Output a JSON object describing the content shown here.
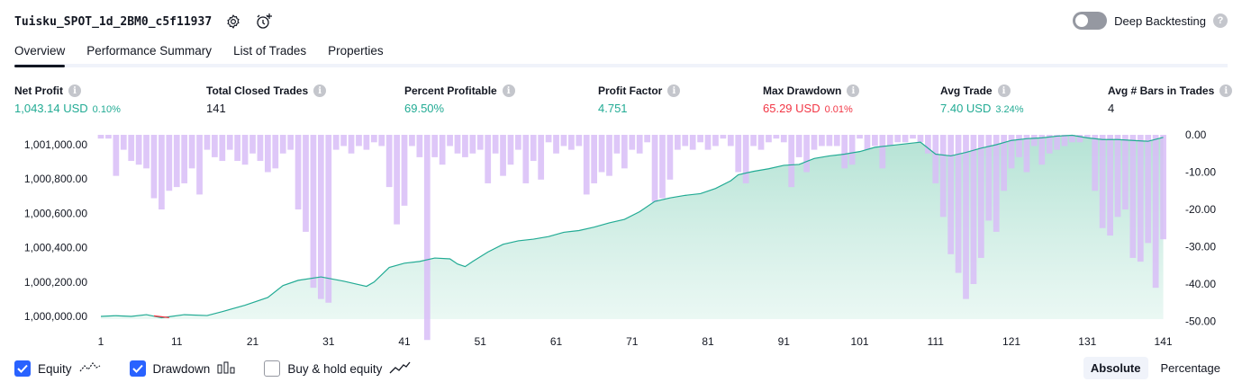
{
  "header": {
    "title": "Tuisku_SPOT_1d_2BM0_c5f11937",
    "deep_backtesting_label": "Deep Backtesting"
  },
  "tabs": [
    "Overview",
    "Performance Summary",
    "List of Trades",
    "Properties"
  ],
  "stats": {
    "net_profit": {
      "label": "Net Profit",
      "value": "1,043.14 USD",
      "pct": "0.10%"
    },
    "total_closed_trades": {
      "label": "Total Closed Trades",
      "value": "141"
    },
    "percent_profitable": {
      "label": "Percent Profitable",
      "value": "69.50%"
    },
    "profit_factor": {
      "label": "Profit Factor",
      "value": "4.751"
    },
    "max_drawdown": {
      "label": "Max Drawdown",
      "value": "65.29 USD",
      "pct": "0.01%"
    },
    "avg_trade": {
      "label": "Avg Trade",
      "value": "7.40 USD",
      "pct": "3.24%"
    },
    "avg_bars": {
      "label": "Avg # Bars in Trades",
      "value": "4"
    }
  },
  "legend": {
    "equity": "Equity",
    "drawdown": "Drawdown",
    "buy_hold": "Buy & hold equity"
  },
  "mode": {
    "absolute": "Absolute",
    "percentage": "Percentage"
  },
  "colors": {
    "accent": "#2962ff",
    "positive": "#22ab94",
    "negative": "#f23645",
    "drawdown_bar": "#d8bdf7",
    "equity_fill": "#c8ebe0"
  },
  "chart_data": {
    "type": "area",
    "x_ticks": [
      "1",
      "11",
      "21",
      "31",
      "41",
      "51",
      "61",
      "71",
      "81",
      "91",
      "101",
      "111",
      "121",
      "131",
      "141"
    ],
    "y_left_ticks": [
      "1,000,000.00",
      "1,000,200.00",
      "1,000,400.00",
      "1,000,600.00",
      "1,000,800.00",
      "1,001,000.00"
    ],
    "y_right_ticks": [
      "0.00",
      "-10.00",
      "-20.00",
      "-30.00",
      "-40.00",
      "-50.00"
    ],
    "equity_ylim": [
      999990,
      1001040
    ],
    "drawdown_ylim": [
      -55,
      0
    ],
    "series": [
      {
        "name": "Equity",
        "x": [
          1,
          3,
          5,
          7,
          9,
          10,
          12,
          15,
          17,
          20,
          23,
          25,
          27,
          30,
          33,
          35,
          36,
          37,
          39,
          41,
          43,
          45,
          47,
          48,
          49,
          50,
          52,
          54,
          56,
          58,
          60,
          62,
          64,
          66,
          68,
          70,
          72,
          74,
          76,
          78,
          80,
          82,
          84,
          85,
          87,
          89,
          91,
          93,
          95,
          97,
          99,
          101,
          103,
          105,
          107,
          109,
          111,
          113,
          115,
          117,
          119,
          121,
          123,
          125,
          127,
          129,
          131,
          133,
          135,
          137,
          139,
          141
        ],
        "values": [
          1000000,
          1000004,
          1000000,
          1000010,
          999992,
          999998,
          1000010,
          1000005,
          1000028,
          1000065,
          1000110,
          1000180,
          1000210,
          1000230,
          1000205,
          1000185,
          1000175,
          1000200,
          1000285,
          1000310,
          1000320,
          1000340,
          1000335,
          1000305,
          1000290,
          1000320,
          1000375,
          1000420,
          1000440,
          1000450,
          1000465,
          1000490,
          1000500,
          1000520,
          1000545,
          1000565,
          1000610,
          1000670,
          1000690,
          1000705,
          1000715,
          1000745,
          1000790,
          1000825,
          1000845,
          1000860,
          1000880,
          1000885,
          1000920,
          1000935,
          1000945,
          1000960,
          1000985,
          1000995,
          1001005,
          1001015,
          1000945,
          1000935,
          1000955,
          1000980,
          1001000,
          1001025,
          1001035,
          1001040,
          1001050,
          1001055,
          1001040,
          1001030,
          1001030,
          1001025,
          1001020,
          1001043
        ]
      },
      {
        "name": "Drawdown",
        "values": [
          -1,
          -1,
          -11,
          -4,
          -7,
          -8,
          -9,
          -17,
          -20,
          -15,
          -14,
          -13,
          -9,
          -16,
          -4,
          -6,
          -7,
          -4,
          -7,
          -8,
          -5,
          -7,
          -10,
          -9,
          -5,
          -4,
          -20,
          -26,
          -41,
          -44,
          -45,
          -4,
          -3,
          -5,
          -3,
          -4,
          -2,
          -3,
          -14,
          -24,
          -19,
          -3,
          -6,
          -55,
          -6,
          -8,
          -3,
          -5,
          -6,
          -5,
          -4,
          -13,
          -5,
          -11,
          -8,
          -4,
          -13,
          -7,
          -12,
          -2,
          -5,
          -3,
          -4,
          -3,
          -16,
          -13,
          -10,
          -11,
          -5,
          -9,
          -4,
          -5,
          -2,
          -18,
          -17,
          -12,
          -4,
          -3,
          -4,
          -2,
          -4,
          -3,
          -1,
          -3,
          -10,
          -13,
          -3,
          -4,
          -2,
          -1,
          -2,
          -14,
          -6,
          -10,
          -4,
          -3,
          -3,
          -3,
          -9,
          -8,
          -1,
          -4,
          -3,
          -9,
          -3,
          -2,
          -2,
          -1,
          -2,
          -5,
          -13,
          -22,
          -32,
          -37,
          -44,
          -40,
          -33,
          -23,
          -26,
          -15,
          -9,
          -6,
          -10,
          -3,
          -8,
          -5,
          -4,
          -3,
          -2,
          -2,
          -1,
          -15,
          -25,
          -27,
          -22,
          -20,
          -33,
          -34,
          -29,
          -41,
          -28
        ]
      }
    ]
  }
}
